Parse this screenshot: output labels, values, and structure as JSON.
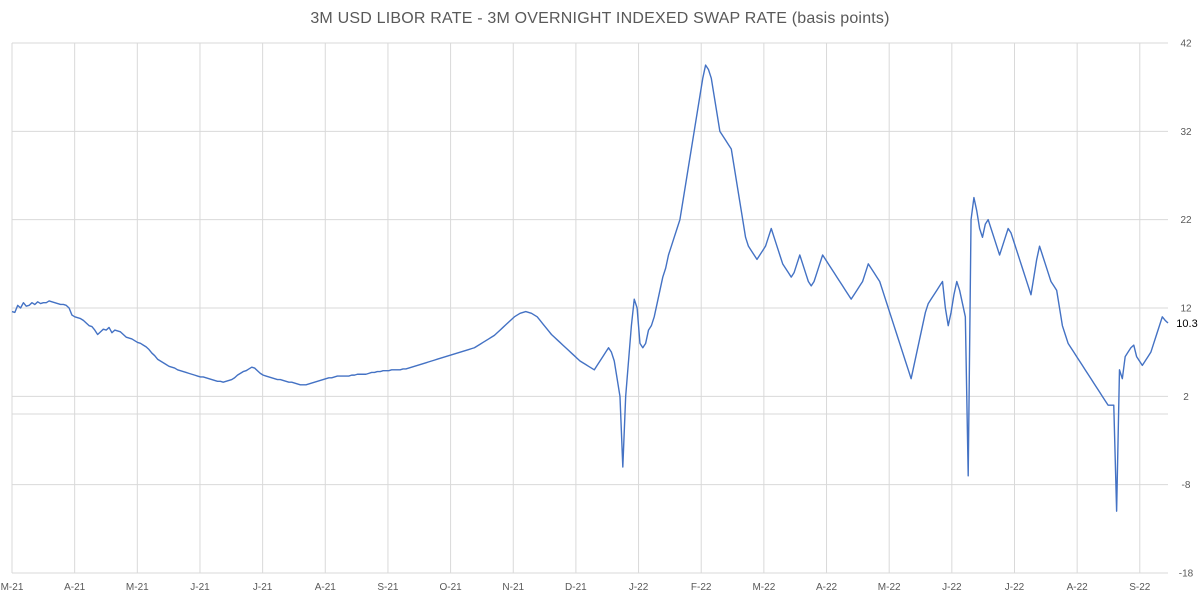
{
  "chart_data": {
    "type": "line",
    "title": "3M USD LIBOR RATE - 3M OVERNIGHT INDEXED SWAP RATE (basis points)",
    "xlabel": "",
    "ylabel": "",
    "ylim": [
      -18,
      42
    ],
    "y_ticks": [
      42,
      32,
      22,
      12,
      2,
      -8,
      -18
    ],
    "x_tick_labels": [
      "M-21",
      "A-21",
      "M-21",
      "J-21",
      "J-21",
      "A-21",
      "S-21",
      "O-21",
      "N-21",
      "D-21",
      "J-22",
      "F-22",
      "M-22",
      "A-22",
      "M-22",
      "J-22",
      "J-22",
      "A-22",
      "S-22"
    ],
    "grid": true,
    "legend": "none",
    "last_value_label": "10.3",
    "line_color": "#4472C4",
    "series": [
      {
        "values": [
          11.6,
          11.5,
          12.3,
          12.0,
          12.6,
          12.2,
          12.3,
          12.6,
          12.4,
          12.7,
          12.5,
          12.6,
          12.6,
          12.8,
          12.7,
          12.6,
          12.5,
          12.4,
          12.4,
          12.3,
          12.0,
          11.2,
          11.0,
          10.9,
          10.8,
          10.6,
          10.3,
          10.0,
          9.9,
          9.5,
          9.0,
          9.3,
          9.6,
          9.5,
          9.8,
          9.2,
          9.5,
          9.4,
          9.3,
          9.0,
          8.7,
          8.6,
          8.5,
          8.3,
          8.1,
          8.0,
          7.8,
          7.6,
          7.3,
          6.9,
          6.6,
          6.2,
          6.0,
          5.8,
          5.6,
          5.4,
          5.3,
          5.2,
          5.0,
          4.9,
          4.8,
          4.7,
          4.6,
          4.5,
          4.4,
          4.3,
          4.2,
          4.2,
          4.1,
          4.0,
          3.9,
          3.8,
          3.7,
          3.7,
          3.6,
          3.7,
          3.8,
          3.9,
          4.1,
          4.4,
          4.6,
          4.8,
          4.9,
          5.1,
          5.3,
          5.2,
          4.9,
          4.6,
          4.4,
          4.3,
          4.2,
          4.1,
          4.0,
          3.9,
          3.9,
          3.8,
          3.7,
          3.6,
          3.6,
          3.5,
          3.4,
          3.3,
          3.3,
          3.3,
          3.4,
          3.5,
          3.6,
          3.7,
          3.8,
          3.9,
          4.0,
          4.1,
          4.1,
          4.2,
          4.3,
          4.3,
          4.3,
          4.3,
          4.3,
          4.4,
          4.4,
          4.5,
          4.5,
          4.5,
          4.5,
          4.6,
          4.7,
          4.7,
          4.8,
          4.8,
          4.9,
          4.9,
          4.9,
          5.0,
          5.0,
          5.0,
          5.0,
          5.1,
          5.1,
          5.2,
          5.3,
          5.4,
          5.5,
          5.6,
          5.7,
          5.8,
          5.9,
          6.0,
          6.1,
          6.2,
          6.3,
          6.4,
          6.5,
          6.6,
          6.7,
          6.8,
          6.9,
          7.0,
          7.1,
          7.2,
          7.3,
          7.4,
          7.5,
          7.7,
          7.9,
          8.1,
          8.3,
          8.5,
          8.7,
          8.9,
          9.2,
          9.5,
          9.8,
          10.1,
          10.4,
          10.7,
          11.0,
          11.2,
          11.4,
          11.5,
          11.6,
          11.5,
          11.4,
          11.2,
          11.0,
          10.6,
          10.2,
          9.8,
          9.4,
          9.0,
          8.7,
          8.4,
          8.1,
          7.8,
          7.5,
          7.2,
          6.9,
          6.6,
          6.3,
          6.0,
          5.8,
          5.6,
          5.4,
          5.2,
          5.0,
          5.5,
          6.0,
          6.5,
          7.0,
          7.5,
          7.0,
          6.0,
          4.0,
          2.0,
          -6.0,
          2.0,
          6.0,
          10.0,
          13.0,
          12.0,
          8.0,
          7.5,
          8.0,
          9.5,
          10.0,
          11.0,
          12.5,
          14.0,
          15.5,
          16.5,
          18.0,
          19.0,
          20.0,
          21.0,
          22.0,
          24.0,
          26.0,
          28.0,
          30.0,
          32.0,
          34.0,
          36.0,
          38.0,
          39.5,
          39.0,
          38.0,
          36.0,
          34.0,
          32.0,
          31.5,
          31.0,
          30.5,
          30.0,
          28.0,
          26.0,
          24.0,
          22.0,
          20.0,
          19.0,
          18.5,
          18.0,
          17.5,
          18.0,
          18.5,
          19.0,
          20.0,
          21.0,
          20.0,
          19.0,
          18.0,
          17.0,
          16.5,
          16.0,
          15.5,
          16.0,
          17.0,
          18.0,
          17.0,
          16.0,
          15.0,
          14.5,
          15.0,
          16.0,
          17.0,
          18.0,
          17.5,
          17.0,
          16.5,
          16.0,
          15.5,
          15.0,
          14.5,
          14.0,
          13.5,
          13.0,
          13.5,
          14.0,
          14.5,
          15.0,
          16.0,
          17.0,
          16.5,
          16.0,
          15.5,
          15.0,
          14.0,
          13.0,
          12.0,
          11.0,
          10.0,
          9.0,
          8.0,
          7.0,
          6.0,
          5.0,
          4.0,
          5.5,
          7.0,
          8.5,
          10.0,
          11.5,
          12.5,
          13.0,
          13.5,
          14.0,
          14.5,
          15.0,
          12.0,
          10.0,
          11.5,
          13.5,
          15.0,
          14.0,
          12.5,
          11.0,
          -7.0,
          22.0,
          24.5,
          23.0,
          21.0,
          20.0,
          21.5,
          22.0,
          21.0,
          20.0,
          19.0,
          18.0,
          19.0,
          20.0,
          21.0,
          20.5,
          19.5,
          18.5,
          17.5,
          16.5,
          15.5,
          14.5,
          13.5,
          15.5,
          17.5,
          19.0,
          18.0,
          17.0,
          16.0,
          15.0,
          14.5,
          14.0,
          12.0,
          10.0,
          9.0,
          8.0,
          7.5,
          7.0,
          6.5,
          6.0,
          5.5,
          5.0,
          4.5,
          4.0,
          3.5,
          3.0,
          2.5,
          2.0,
          1.5,
          1.0,
          1.0,
          1.0,
          -11.0,
          5.0,
          4.0,
          6.5,
          7.0,
          7.5,
          7.8,
          6.5,
          6.0,
          5.5,
          6.0,
          6.5,
          7.0,
          8.0,
          9.0,
          10.0,
          11.0,
          10.6,
          10.3
        ]
      }
    ]
  }
}
